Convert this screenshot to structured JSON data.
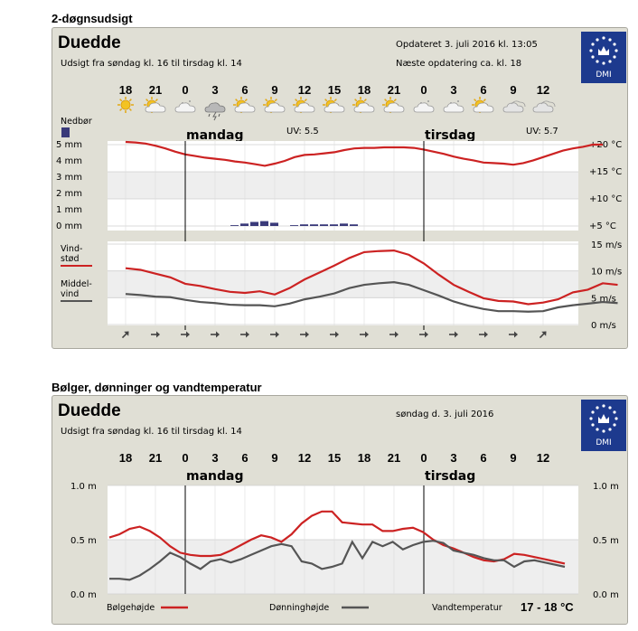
{
  "forecast": {
    "section_title": "2-døgnsudsigt",
    "location": "Duedde",
    "period": "Udsigt fra søndag kl. 16 til tirsdag kl. 14",
    "updated": "Opdateret 3. juli 2016 kl. 13:05",
    "next_update": "Næste opdatering ca. kl. 18",
    "logo_text": "DMI",
    "hours": [
      "18",
      "21",
      "0",
      "3",
      "6",
      "9",
      "12",
      "15",
      "18",
      "21",
      "0",
      "3",
      "6",
      "9",
      "12"
    ],
    "weather_icons": [
      "sun",
      "partly-cloudy-sun",
      "partly-cloudy-night",
      "thunder-rain",
      "partly-cloudy-sun",
      "partly-cloudy-sun",
      "partly-cloudy-sun",
      "partly-cloudy-sun",
      "partly-cloudy-sun",
      "partly-cloudy-sun",
      "partly-cloudy-night",
      "partly-cloudy-night",
      "partly-cloudy-sun",
      "cloudy",
      "cloudy"
    ],
    "days": [
      "mandag",
      "tirsdag"
    ],
    "uv": [
      "UV: 5.5",
      "UV: 5.7"
    ],
    "precip_label": "Nedbør",
    "wind_gust_label": [
      "Vind-",
      "stød"
    ],
    "wind_mean_label": [
      "Middel-",
      "vind"
    ],
    "wind_directions_deg": [
      45,
      90,
      90,
      90,
      90,
      90,
      90,
      90,
      90,
      90,
      90,
      90,
      90,
      90,
      45
    ],
    "colors": {
      "temperature": "#cc2222",
      "precipitation": "#3a3a7a",
      "wind_gust": "#cc2222",
      "wind_mean": "#555555",
      "panel": "#e0dfd5",
      "band": "#eeeeee"
    }
  },
  "waves": {
    "section_title": "Bølger, dønninger og vandtemperatur",
    "location": "Duedde",
    "period": "Udsigt fra søndag kl. 16 til tirsdag kl. 14",
    "date": "søndag d. 3. juli 2016",
    "logo_text": "DMI",
    "hours": [
      "18",
      "21",
      "0",
      "3",
      "6",
      "9",
      "12",
      "15",
      "18",
      "21",
      "0",
      "3",
      "6",
      "9",
      "12"
    ],
    "days": [
      "mandag",
      "tirsdag"
    ],
    "legend_wave": "Bølgehøjde",
    "legend_swell": "Dønninghøjde",
    "water_temp_label": "Vandtemperatur",
    "water_temp_value": "17 - 18 °C"
  },
  "chart_data": [
    {
      "type": "line",
      "x_hours": [
        0,
        4,
        8,
        12,
        16,
        20,
        24,
        28,
        32,
        36,
        40,
        44
      ],
      "x_start": "søndag 16",
      "series": [
        {
          "values": [
            20.3,
            20.1,
            19.3,
            18.6,
            18.3,
            17.7,
            17.1,
            16.8,
            16.4,
            16.0,
            15.6,
            15.3
          ]
        }
      ],
      "ylabel_right": [
        "+20 °C",
        "+15 °C",
        "+10 °C",
        "+5 °C"
      ],
      "ylim_right": [
        5,
        20
      ],
      "ylabel_left": [
        "5 mm",
        "4 mm",
        "3 mm",
        "2 mm",
        "1 mm",
        "0 mm"
      ],
      "ylim_left": [
        0,
        5
      ],
      "temperature": [
        [
          0,
          20.5
        ],
        [
          1,
          20.4
        ],
        [
          2,
          20.2
        ],
        [
          3,
          19.8
        ],
        [
          4,
          19.3
        ],
        [
          5,
          18.7
        ],
        [
          6,
          18.2
        ],
        [
          7,
          17.9
        ],
        [
          8,
          17.6
        ],
        [
          9,
          17.4
        ],
        [
          10,
          17.2
        ],
        [
          11,
          16.9
        ],
        [
          12,
          16.7
        ],
        [
          13,
          16.4
        ],
        [
          14,
          16.1
        ],
        [
          15,
          16.5
        ],
        [
          16,
          17.0
        ],
        [
          17,
          17.7
        ],
        [
          18,
          18.1
        ],
        [
          19,
          18.2
        ],
        [
          20,
          18.4
        ],
        [
          21,
          18.6
        ],
        [
          22,
          19.0
        ],
        [
          23,
          19.3
        ],
        [
          24,
          19.4
        ],
        [
          25,
          19.4
        ],
        [
          26,
          19.5
        ],
        [
          27,
          19.5
        ],
        [
          28,
          19.5
        ],
        [
          29,
          19.4
        ],
        [
          30,
          19.1
        ],
        [
          31,
          18.7
        ],
        [
          32,
          18.3
        ],
        [
          33,
          17.8
        ],
        [
          34,
          17.4
        ],
        [
          35,
          17.1
        ],
        [
          36,
          16.7
        ],
        [
          37,
          16.6
        ],
        [
          38,
          16.5
        ],
        [
          39,
          16.3
        ],
        [
          40,
          16.6
        ],
        [
          41,
          17.1
        ],
        [
          42,
          17.7
        ],
        [
          43,
          18.3
        ],
        [
          44,
          18.9
        ],
        [
          45,
          19.3
        ],
        [
          46,
          19.6
        ],
        [
          47,
          20.0
        ],
        [
          48,
          20.0
        ]
      ],
      "precipitation_mm": [
        [
          11,
          0.05
        ],
        [
          12,
          0.15
        ],
        [
          13,
          0.25
        ],
        [
          14,
          0.3
        ],
        [
          15,
          0.2
        ],
        [
          17,
          0.05
        ],
        [
          18,
          0.1
        ],
        [
          19,
          0.1
        ],
        [
          20,
          0.1
        ],
        [
          21,
          0.1
        ],
        [
          22,
          0.15
        ],
        [
          23,
          0.1
        ]
      ]
    },
    {
      "type": "line",
      "yname": "wind",
      "ylabels": [
        "15 m/s",
        "10 m/s",
        "5 m/s",
        "0 m/s"
      ],
      "ylim": [
        0,
        15
      ],
      "gust": [
        [
          0,
          10.5
        ],
        [
          2,
          10.2
        ],
        [
          4,
          9.5
        ],
        [
          6,
          8.8
        ],
        [
          8,
          7.6
        ],
        [
          10,
          7.2
        ],
        [
          12,
          6.6
        ],
        [
          14,
          6.1
        ],
        [
          16,
          5.9
        ],
        [
          18,
          6.2
        ],
        [
          20,
          5.6
        ],
        [
          22,
          6.8
        ],
        [
          24,
          8.4
        ],
        [
          26,
          9.7
        ],
        [
          28,
          11.0
        ],
        [
          30,
          12.4
        ],
        [
          32,
          13.5
        ],
        [
          34,
          13.7
        ],
        [
          36,
          13.8
        ],
        [
          38,
          13.0
        ],
        [
          40,
          11.4
        ],
        [
          42,
          9.3
        ],
        [
          44,
          7.4
        ],
        [
          46,
          6.1
        ],
        [
          48,
          4.9
        ],
        [
          50,
          4.4
        ],
        [
          52,
          4.3
        ],
        [
          54,
          3.8
        ],
        [
          56,
          4.1
        ],
        [
          58,
          4.7
        ],
        [
          60,
          6.0
        ],
        [
          62,
          6.5
        ],
        [
          64,
          7.7
        ],
        [
          66,
          7.4
        ]
      ],
      "mean": [
        [
          0,
          5.7
        ],
        [
          2,
          5.5
        ],
        [
          4,
          5.2
        ],
        [
          6,
          5.1
        ],
        [
          8,
          4.6
        ],
        [
          10,
          4.2
        ],
        [
          12,
          4.0
        ],
        [
          14,
          3.7
        ],
        [
          16,
          3.6
        ],
        [
          18,
          3.6
        ],
        [
          20,
          3.4
        ],
        [
          22,
          3.9
        ],
        [
          24,
          4.7
        ],
        [
          26,
          5.2
        ],
        [
          28,
          5.8
        ],
        [
          30,
          6.8
        ],
        [
          32,
          7.4
        ],
        [
          34,
          7.7
        ],
        [
          36,
          7.9
        ],
        [
          38,
          7.4
        ],
        [
          40,
          6.4
        ],
        [
          42,
          5.4
        ],
        [
          44,
          4.3
        ],
        [
          46,
          3.5
        ],
        [
          48,
          2.9
        ],
        [
          50,
          2.5
        ],
        [
          52,
          2.5
        ],
        [
          54,
          2.4
        ],
        [
          56,
          2.5
        ],
        [
          58,
          3.2
        ],
        [
          60,
          3.6
        ],
        [
          62,
          3.9
        ],
        [
          64,
          4.2
        ],
        [
          66,
          4.0
        ]
      ]
    },
    {
      "type": "line",
      "ylabels": [
        "1.0 m",
        "0.5 m",
        "0.0 m"
      ],
      "ylim": [
        0,
        1.0
      ],
      "series": [
        {
          "name": "Bølgehøjde",
          "values": [
            0.52,
            0.55,
            0.6,
            0.62,
            0.58,
            0.52,
            0.44,
            0.38,
            0.36,
            0.35,
            0.35,
            0.36,
            0.4,
            0.45,
            0.5,
            0.54,
            0.52,
            0.48,
            0.55,
            0.65,
            0.72,
            0.76,
            0.76,
            0.66,
            0.65,
            0.64,
            0.64,
            0.58,
            0.58,
            0.6,
            0.61,
            0.57,
            0.5,
            0.45,
            0.42,
            0.38,
            0.34,
            0.31,
            0.3,
            0.32,
            0.37,
            0.36,
            0.34,
            0.32,
            0.3,
            0.28
          ]
        },
        {
          "name": "Dønninghøjde",
          "values": [
            0.14,
            0.14,
            0.13,
            0.17,
            0.23,
            0.3,
            0.38,
            0.34,
            0.28,
            0.23,
            0.3,
            0.32,
            0.29,
            0.32,
            0.36,
            0.4,
            0.44,
            0.46,
            0.44,
            0.3,
            0.28,
            0.23,
            0.25,
            0.28,
            0.48,
            0.33,
            0.48,
            0.44,
            0.48,
            0.41,
            0.45,
            0.48,
            0.49,
            0.47,
            0.4,
            0.38,
            0.36,
            0.33,
            0.31,
            0.31,
            0.25,
            0.3,
            0.31,
            0.29,
            0.27,
            0.25
          ]
        }
      ]
    }
  ]
}
